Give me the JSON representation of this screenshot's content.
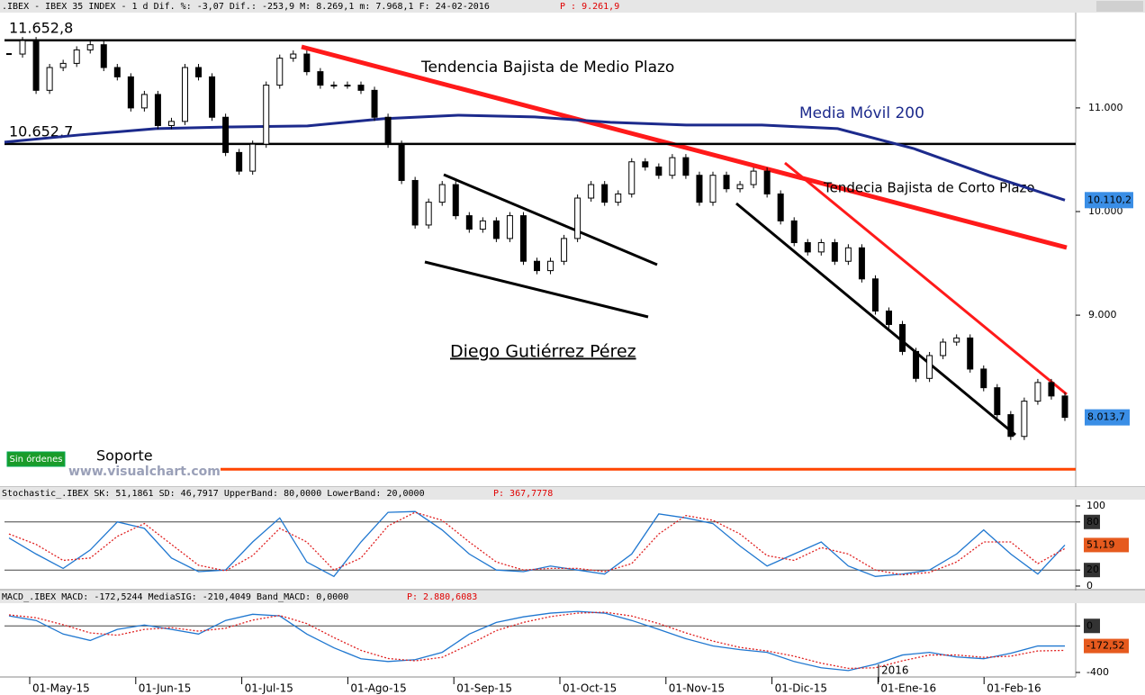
{
  "header": {
    "text": ".IBEX - IBEX 35 INDEX -   1 d Dif. %: -3,07 Dif.: -253,9 M: 8.269,1 m: 7.968,1 F: 24-02-2016",
    "price": "P : 9.261,9"
  },
  "annotations": {
    "medium_trend": "Tendencia Bajista de Medio Plazo",
    "short_trend": "Tendecia Bajista de Corto Plazo",
    "author": "Diego Gutiérrez Pérez",
    "orders": "Sin órdenes",
    "watermark": "www.visualchart.com",
    "year": "2016"
  },
  "xticks": [
    "01-May-15",
    "01-Jun-15",
    "01-Jul-15",
    "01-Ago-15",
    "01-Sep-15",
    "01-Oct-15",
    "01-Nov-15",
    "01-Dic-15",
    "01-Ene-16",
    "01-Feb-16"
  ],
  "chart_data": [
    {
      "type": "candlestick",
      "close": [
        11520,
        11650,
        11170,
        11390,
        11430,
        11560,
        11610,
        11390,
        11300,
        11000,
        11130,
        10830,
        10870,
        11390,
        11300,
        10910,
        10570,
        10390,
        10650,
        11220,
        11480,
        11520,
        11350,
        11220,
        11220,
        11220,
        11170,
        10910,
        10650,
        10300,
        9870,
        10090,
        10260,
        9960,
        9830,
        9910,
        9740,
        9960,
        9520,
        9430,
        9520,
        9740,
        10130,
        10260,
        10090,
        10170,
        10480,
        10430,
        10350,
        10520,
        10350,
        10090,
        10350,
        10220,
        10260,
        10390,
        10170,
        9910,
        9700,
        9610,
        9700,
        9520,
        9650,
        9350,
        9040,
        8910,
        8650,
        8390,
        8610,
        8740,
        8780,
        8480,
        8300,
        8040,
        7830,
        8170,
        8350,
        8220,
        8013.7
      ],
      "close_label": "8.013,7",
      "ylim": [
        7350,
        11920
      ],
      "yticks": [
        {
          "value": 11000,
          "label": "11.000"
        },
        {
          "value": 10000,
          "label": "10.000"
        },
        {
          "value": 9000,
          "label": "9.000"
        }
      ],
      "levels": [
        {
          "value": 11652.8,
          "label": "11.652,8"
        },
        {
          "value": 10652.7,
          "label": "10.652,7"
        }
      ],
      "support": {
        "value": 7513,
        "label": "Soporte",
        "color": "#ff4500"
      },
      "ma": {
        "name": "Media Móvil 200",
        "color": "#1c2a8c",
        "values": [
          10670,
          10740,
          10800,
          10817,
          10826,
          10896,
          10930,
          10913,
          10861,
          10835,
          10835,
          10800,
          10609,
          10348,
          10110.2
        ],
        "last_label": "10.110,2"
      }
    },
    {
      "type": "line",
      "title": "Stochastic_.IBEX SK: 51,1861 SD: 46,7917 UpperBand: 80,0000 LowerBand: 20,0000",
      "price": "P: 367,7778",
      "ylim": [
        -4.5,
        106.7
      ],
      "yticks": [
        0,
        20,
        80,
        100
      ],
      "bands": [
        20,
        80
      ],
      "boxed": [
        20,
        80
      ],
      "series": [
        {
          "name": "SK",
          "color": "#1f77d0",
          "values": [
            60,
            40,
            22,
            45,
            80,
            72,
            35,
            18,
            20,
            55,
            85,
            30,
            12,
            55,
            92,
            93,
            70,
            40,
            20,
            18,
            25,
            20,
            15,
            40,
            90,
            85,
            78,
            50,
            25,
            40,
            55,
            25,
            12,
            15,
            20,
            40,
            70,
            40,
            15,
            51.19
          ],
          "last_label": "51,19"
        },
        {
          "name": "SD",
          "color": "#e02020",
          "dashed": true,
          "values": [
            65,
            52,
            32,
            35,
            62,
            78,
            52,
            26,
            19,
            38,
            72,
            55,
            20,
            35,
            75,
            92,
            82,
            55,
            30,
            20,
            22,
            22,
            18,
            28,
            65,
            88,
            82,
            65,
            38,
            32,
            48,
            40,
            20,
            14,
            17,
            30,
            55,
            55,
            28,
            46.79
          ]
        }
      ]
    },
    {
      "type": "line",
      "title": "MACD_.IBEX MACD: -172,5244 MediaSIG: -210,4049 Band_MACD: 0,0000",
      "price": "P: 2.880,6083",
      "ylim": [
        -439,
        180
      ],
      "yticks": [
        0,
        -400
      ],
      "bands": [
        0
      ],
      "boxed": [
        0
      ],
      "series": [
        {
          "name": "MACD",
          "color": "#1f77d0",
          "values": [
            86,
            47,
            -70,
            -125,
            -30,
            8,
            -30,
            -70,
            47,
            100,
            86,
            -70,
            -188,
            -282,
            -306,
            -290,
            -227,
            -70,
            30,
            78,
            110,
            125,
            110,
            47,
            -30,
            -110,
            -172,
            -204,
            -227,
            -306,
            -360,
            -384,
            -330,
            -250,
            -227,
            -267,
            -282,
            -235,
            -172,
            -172.52
          ],
          "last_label": "-172,52"
        },
        {
          "name": "MediaSIG",
          "color": "#e02020",
          "dashed": true,
          "values": [
            95,
            70,
            10,
            -60,
            -80,
            -30,
            -15,
            -45,
            -20,
            50,
            90,
            20,
            -100,
            -210,
            -280,
            -300,
            -270,
            -160,
            -40,
            30,
            80,
            110,
            118,
            85,
            20,
            -60,
            -130,
            -185,
            -215,
            -260,
            -320,
            -365,
            -360,
            -300,
            -250,
            -250,
            -270,
            -260,
            -215,
            -210.4
          ]
        }
      ]
    }
  ]
}
